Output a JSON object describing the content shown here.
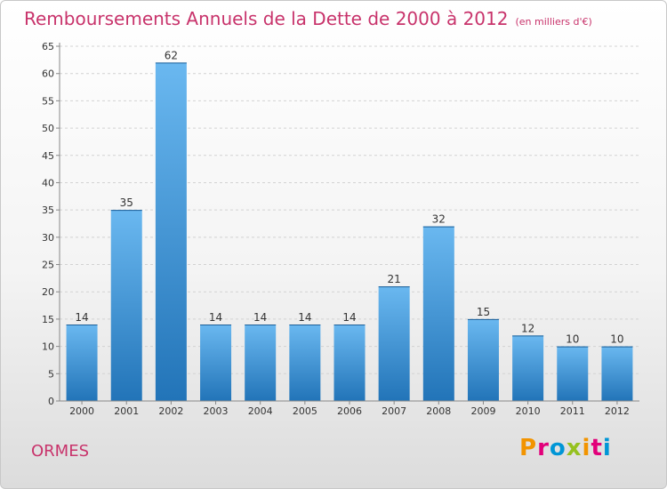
{
  "header": {
    "title": "Remboursements Annuels de la Dette de 2000 à 2012",
    "subtitle": "(en milliers d'€)"
  },
  "footer": {
    "town": "ORMES",
    "logo_text": "Proxiti",
    "logo_colors": [
      "#f29400",
      "#e2007a",
      "#0096d6",
      "#95c11f",
      "#f29400",
      "#e2007a",
      "#0096d6"
    ]
  },
  "colors": {
    "title": "#c8336b",
    "bar_light": "#6ab8f0",
    "bar_dark": "#2274b8"
  },
  "chart_data": {
    "type": "bar",
    "categories": [
      "2000",
      "2001",
      "2002",
      "2003",
      "2004",
      "2005",
      "2006",
      "2007",
      "2008",
      "2009",
      "2010",
      "2011",
      "2012"
    ],
    "values": [
      14,
      35,
      62,
      14,
      14,
      14,
      14,
      21,
      32,
      15,
      12,
      10,
      10
    ],
    "yticks": [
      0,
      5,
      10,
      15,
      20,
      25,
      30,
      35,
      40,
      45,
      50,
      55,
      60,
      65
    ],
    "ylim": [
      0,
      65
    ],
    "grid": true,
    "data_labels": true
  }
}
